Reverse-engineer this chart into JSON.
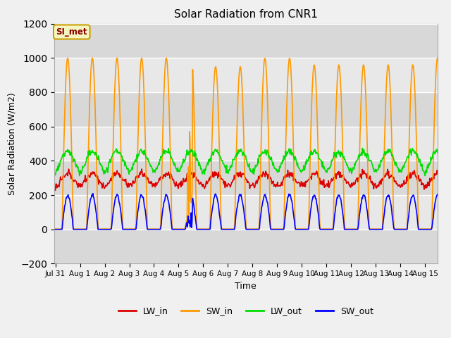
{
  "title": "Solar Radiation from CNR1",
  "xlabel": "Time",
  "ylabel": "Solar Radiation (W/m2)",
  "ylim": [
    -200,
    1200
  ],
  "xlim_days": 15.5,
  "fig_bg_color": "#f0f0f0",
  "plot_bg_color": "#e8e8e8",
  "annotation_text": "SI_met",
  "annotation_color": "#8B0000",
  "annotation_bg": "#f5f5c0",
  "annotation_border": "#c8a000",
  "series": {
    "LW_in": {
      "color": "#dd0000",
      "lw": 1.2
    },
    "SW_in": {
      "color": "#ff9900",
      "lw": 1.2
    },
    "LW_out": {
      "color": "#00dd00",
      "lw": 1.2
    },
    "SW_out": {
      "color": "#0000ff",
      "lw": 1.2
    }
  },
  "tick_labels": [
    "Jul 31",
    "Aug 1",
    "Aug 2",
    "Aug 3",
    "Aug 4",
    "Aug 5",
    "Aug 6",
    "Aug 7",
    "Aug 8",
    "Aug 9",
    "Aug 10",
    "Aug 11",
    "Aug 12",
    "Aug 13",
    "Aug 14",
    "Aug 15"
  ],
  "tick_positions": [
    0,
    1,
    2,
    3,
    4,
    5,
    6,
    7,
    8,
    9,
    10,
    11,
    12,
    13,
    14,
    15
  ],
  "yticks": [
    -200,
    0,
    200,
    400,
    600,
    800,
    1000,
    1200
  ]
}
